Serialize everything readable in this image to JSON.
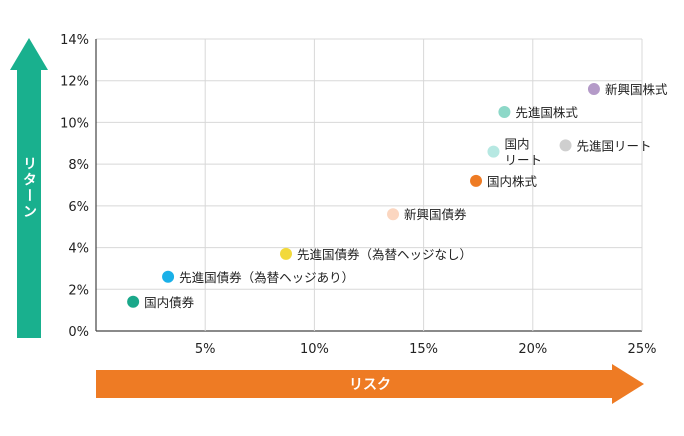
{
  "chart_data": {
    "type": "scatter",
    "xlim": [
      0,
      25
    ],
    "ylim": [
      0,
      14
    ],
    "x_ticks": [
      "5%",
      "10%",
      "15%",
      "20%",
      "25%"
    ],
    "y_ticks": [
      "0%",
      "2%",
      "4%",
      "6%",
      "8%",
      "10%",
      "12%",
      "14%"
    ],
    "grid": true,
    "x_axis_label": "リスク",
    "y_axis_label": "リターン",
    "points": [
      {
        "label": "国内債券",
        "x": 1.7,
        "y": 1.4,
        "color": "#1aa88a"
      },
      {
        "label": "先進国債券（為替ヘッジあり）",
        "x": 3.3,
        "y": 2.6,
        "color": "#1ab0e8"
      },
      {
        "label": "先進国債券（為替ヘッジなし）",
        "x": 8.7,
        "y": 3.7,
        "color": "#f2d93b"
      },
      {
        "label": "新興国債券",
        "x": 13.6,
        "y": 5.6,
        "color": "#fbd6c0"
      },
      {
        "label": "国内株式",
        "x": 17.4,
        "y": 7.2,
        "color": "#ee7b24"
      },
      {
        "label": "国内\nリート",
        "x": 18.2,
        "y": 8.6,
        "color": "#b6e8e2"
      },
      {
        "label": "先進国株式",
        "x": 18.7,
        "y": 10.5,
        "color": "#8dd8c8"
      },
      {
        "label": "先進国リート",
        "x": 21.5,
        "y": 8.9,
        "color": "#cfcfcf"
      },
      {
        "label": "新興国株式",
        "x": 22.8,
        "y": 11.6,
        "color": "#b49ac8"
      }
    ],
    "colors": {
      "x_arrow": "#ee7b24",
      "y_arrow": "#19b08e",
      "grid": "#d8d8d8",
      "axis": "#444444",
      "text": "#222222"
    }
  }
}
